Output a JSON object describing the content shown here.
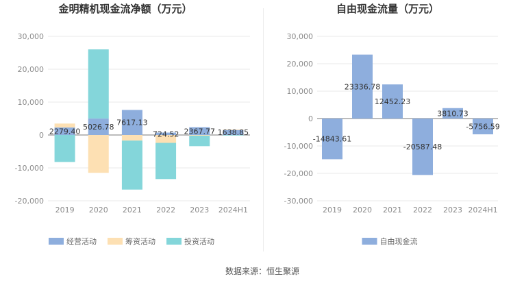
{
  "source_text": "数据来源：恒生聚源",
  "chart_data": [
    {
      "type": "bar",
      "stacked": true,
      "title": "金明精机现金流净额（万元）",
      "categories": [
        "2019",
        "2020",
        "2021",
        "2022",
        "2023",
        "2024H1"
      ],
      "ylim": [
        -20000,
        30000
      ],
      "yticks": [
        "30,000",
        "20,000",
        "10,000",
        "0",
        "-10,000",
        "-20,000"
      ],
      "ytick_values": [
        30000,
        20000,
        10000,
        0,
        -10000,
        -20000
      ],
      "grid": true,
      "legend_position": "bottom",
      "series": [
        {
          "name": "经营活动",
          "color": "#8eaedd",
          "values": [
            2279.4,
            5026.78,
            7617.13,
            724.52,
            2367.77,
            1638.85
          ],
          "labels": [
            "2279.40",
            "5026.78",
            "7617.13",
            "724.52",
            "2367.77",
            "1638.85"
          ]
        },
        {
          "name": "筹资活动",
          "color": "#fde0b3",
          "values": [
            1200,
            -11500,
            -1700,
            -2400,
            -200,
            20
          ]
        },
        {
          "name": "投资活动",
          "color": "#84d6da",
          "values": [
            -8200,
            21000,
            -14900,
            -11000,
            -3200,
            -80
          ]
        }
      ]
    },
    {
      "type": "bar",
      "title": "自由现金流量（万元）",
      "categories": [
        "2019",
        "2020",
        "2021",
        "2022",
        "2023",
        "2024H1"
      ],
      "ylim": [
        -30000,
        30000
      ],
      "yticks": [
        "30,000",
        "20,000",
        "10,000",
        "0",
        "-10,000",
        "-20,000",
        "-30,000"
      ],
      "ytick_values": [
        30000,
        20000,
        10000,
        0,
        -10000,
        -20000,
        -30000
      ],
      "grid": true,
      "legend_position": "bottom",
      "series": [
        {
          "name": "自由现金流",
          "color": "#8eaedd",
          "values": [
            -14843.61,
            23336.78,
            12452.23,
            -20587.48,
            3810.73,
            -5756.59
          ],
          "labels": [
            "-14843.61",
            "23336.78",
            "12452.23",
            "-20587.48",
            "3810.73",
            "-5756.59"
          ]
        }
      ]
    }
  ]
}
